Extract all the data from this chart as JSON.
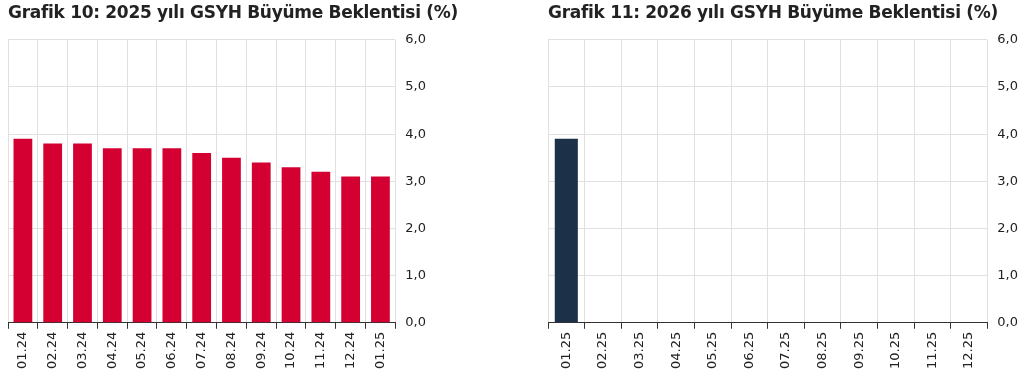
{
  "chart_data": [
    {
      "type": "bar",
      "title": "Grafik 10: 2025 yılı GSYH Büyüme Beklentisi (%)",
      "categories": [
        "01.24",
        "02.24",
        "03.24",
        "04.24",
        "05.24",
        "06.24",
        "07.24",
        "08.24",
        "09.24",
        "10.24",
        "11.24",
        "12.24",
        "01.25"
      ],
      "values": [
        3.9,
        3.8,
        3.8,
        3.7,
        3.7,
        3.7,
        3.6,
        3.5,
        3.4,
        3.3,
        3.2,
        3.1,
        3.1
      ],
      "color": "#d50032",
      "ylim": [
        0,
        6
      ],
      "yticks": [
        {
          "value": 0,
          "label": "0,0"
        },
        {
          "value": 1,
          "label": "1,0"
        },
        {
          "value": 2,
          "label": "2,0"
        },
        {
          "value": 3,
          "label": "3,0"
        },
        {
          "value": 4,
          "label": "4,0"
        },
        {
          "value": 5,
          "label": "5,0"
        },
        {
          "value": 6,
          "label": "6,0"
        }
      ],
      "grid": true
    },
    {
      "type": "bar",
      "title": "Grafik 11: 2026 yılı GSYH Büyüme Beklentisi (%)",
      "categories": [
        "01.25",
        "02.25",
        "03.25",
        "04.25",
        "05.25",
        "06.25",
        "07.25",
        "08.25",
        "09.25",
        "10.25",
        "11.25",
        "12.25"
      ],
      "values": [
        3.9,
        null,
        null,
        null,
        null,
        null,
        null,
        null,
        null,
        null,
        null,
        null
      ],
      "color": "#1c3048",
      "ylim": [
        0,
        6
      ],
      "yticks": [
        {
          "value": 0,
          "label": "0,0"
        },
        {
          "value": 1,
          "label": "1,0"
        },
        {
          "value": 2,
          "label": "2,0"
        },
        {
          "value": 3,
          "label": "3,0"
        },
        {
          "value": 4,
          "label": "4,0"
        },
        {
          "value": 5,
          "label": "5,0"
        },
        {
          "value": 6,
          "label": "6,0"
        }
      ],
      "grid": true
    }
  ]
}
